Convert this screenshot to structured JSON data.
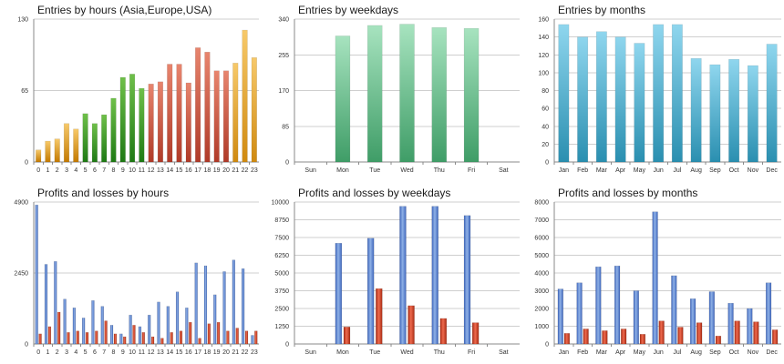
{
  "chart_data": [
    {
      "id": "c1",
      "type": "bar",
      "title": "Entries by hours (Asia,Europe,USA)",
      "ylim": [
        0,
        130
      ],
      "yticks": [
        "0",
        "65",
        "130"
      ],
      "categories": [
        "0",
        "1",
        "2",
        "3",
        "4",
        "5",
        "6",
        "7",
        "8",
        "9",
        "10",
        "11",
        "12",
        "13",
        "14",
        "15",
        "16",
        "17",
        "18",
        "19",
        "20",
        "21",
        "22",
        "23"
      ],
      "series": [
        {
          "name": "Entries",
          "values": [
            11,
            19,
            21,
            35,
            30,
            44,
            35,
            43,
            58,
            77,
            80,
            67,
            71,
            73,
            89,
            89,
            72,
            104,
            100,
            83,
            83,
            90,
            120,
            95
          ]
        }
      ],
      "bar_colors": [
        [
          "#f7c96a",
          "#c47a00"
        ],
        [
          "#f7c96a",
          "#c47a00"
        ],
        [
          "#f7c96a",
          "#c47a00"
        ],
        [
          "#f7c96a",
          "#c47a00"
        ],
        [
          "#f7c96a",
          "#c47a00"
        ],
        [
          "#6fc04a",
          "#1e7a14"
        ],
        [
          "#6fc04a",
          "#1e7a14"
        ],
        [
          "#6fc04a",
          "#1e7a14"
        ],
        [
          "#6fc04a",
          "#1e7a14"
        ],
        [
          "#6fc04a",
          "#1e7a14"
        ],
        [
          "#6fc04a",
          "#1e7a14"
        ],
        [
          "#6fc04a",
          "#1e7a14"
        ],
        [
          "#e8856e",
          "#b03a28"
        ],
        [
          "#e8856e",
          "#b03a28"
        ],
        [
          "#e8856e",
          "#b03a28"
        ],
        [
          "#e8856e",
          "#b03a28"
        ],
        [
          "#e8856e",
          "#b03a28"
        ],
        [
          "#e8856e",
          "#b03a28"
        ],
        [
          "#e8856e",
          "#b03a28"
        ],
        [
          "#e8856e",
          "#b03a28"
        ],
        [
          "#e8856e",
          "#b03a28"
        ],
        [
          "#f7c96a",
          "#d08a10"
        ],
        [
          "#f7c96a",
          "#d08a10"
        ],
        [
          "#f7c96a",
          "#d08a10"
        ]
      ]
    },
    {
      "id": "c2",
      "type": "bar",
      "title": "Entries by weekdays",
      "ylim": [
        0,
        340
      ],
      "yticks": [
        "0",
        "85",
        "170",
        "255",
        "340"
      ],
      "categories": [
        "Sun",
        "Mon",
        "Tue",
        "Wed",
        "Thu",
        "Fri",
        "Sat"
      ],
      "series": [
        {
          "name": "Entries",
          "values": [
            0,
            300,
            325,
            328,
            320,
            318,
            0
          ]
        }
      ],
      "colors": [
        "#a7e3bf",
        "#3f9d67"
      ]
    },
    {
      "id": "c3",
      "type": "bar",
      "title": "Entries by months",
      "ylim": [
        0,
        160
      ],
      "yticks": [
        "0",
        "20",
        "40",
        "60",
        "80",
        "100",
        "120",
        "140",
        "160"
      ],
      "categories": [
        "Jan",
        "Feb",
        "Mar",
        "Apr",
        "May",
        "Jun",
        "Jul",
        "Aug",
        "Sep",
        "Oct",
        "Nov",
        "Dec"
      ],
      "series": [
        {
          "name": "Entries",
          "values": [
            154,
            140,
            146,
            140,
            133,
            154,
            154,
            116,
            109,
            115,
            108,
            132
          ]
        }
      ],
      "colors": [
        "#8fd6ee",
        "#2a8fb0"
      ]
    },
    {
      "id": "c4",
      "type": "bar",
      "title": "Profits and losses by hours",
      "ylim": [
        0,
        4900
      ],
      "yticks": [
        "0",
        "2450",
        "4900"
      ],
      "categories": [
        "0",
        "1",
        "2",
        "3",
        "4",
        "5",
        "6",
        "7",
        "8",
        "9",
        "10",
        "11",
        "12",
        "13",
        "14",
        "15",
        "16",
        "17",
        "18",
        "19",
        "20",
        "21",
        "22",
        "23"
      ],
      "series": [
        {
          "name": "Profits",
          "values": [
            4800,
            2750,
            2850,
            1550,
            1250,
            900,
            1500,
            1300,
            650,
            350,
            1000,
            600,
            1000,
            1450,
            1300,
            1800,
            1250,
            2800,
            2700,
            1700,
            2500,
            2900,
            2600,
            300
          ]
        },
        {
          "name": "Losses",
          "values": [
            350,
            600,
            1100,
            400,
            450,
            400,
            450,
            800,
            350,
            250,
            650,
            400,
            250,
            200,
            400,
            450,
            750,
            200,
            700,
            750,
            450,
            550,
            450,
            450
          ]
        }
      ],
      "colors": [
        [
          "#8fb1e6",
          "#3e66bd"
        ],
        [
          "#ee6a4e",
          "#a82a12"
        ]
      ]
    },
    {
      "id": "c5",
      "type": "bar",
      "title": "Profits and losses by weekdays",
      "ylim": [
        0,
        10000
      ],
      "yticks": [
        "0",
        "1250",
        "2500",
        "3750",
        "5000",
        "6250",
        "7500",
        "8750",
        "10000"
      ],
      "categories": [
        "Sun",
        "Mon",
        "Tue",
        "Wed",
        "Thu",
        "Fri",
        "Sat"
      ],
      "series": [
        {
          "name": "Profits",
          "values": [
            0,
            7100,
            7450,
            9700,
            9700,
            9050,
            0
          ]
        },
        {
          "name": "Losses",
          "values": [
            0,
            1200,
            3900,
            2700,
            1800,
            1500,
            0
          ]
        }
      ],
      "colors": [
        [
          "#8fb1e6",
          "#3e66bd"
        ],
        [
          "#ee6a4e",
          "#a82a12"
        ]
      ]
    },
    {
      "id": "c6",
      "type": "bar",
      "title": "Profits and losses by months",
      "ylim": [
        0,
        8000
      ],
      "yticks": [
        "0",
        "1000",
        "2000",
        "3000",
        "4000",
        "5000",
        "6000",
        "7000",
        "8000"
      ],
      "categories": [
        "Jan",
        "Feb",
        "Mar",
        "Apr",
        "May",
        "Jun",
        "Jul",
        "Aug",
        "Sep",
        "Oct",
        "Nov",
        "Dec"
      ],
      "series": [
        {
          "name": "Profits",
          "values": [
            3100,
            3450,
            4350,
            4400,
            3000,
            7450,
            3850,
            2550,
            2950,
            2300,
            2000,
            3450
          ]
        },
        {
          "name": "Losses",
          "values": [
            600,
            850,
            750,
            850,
            550,
            1300,
            950,
            1200,
            450,
            1300,
            1250,
            800
          ]
        }
      ],
      "colors": [
        [
          "#8fb1e6",
          "#3e66bd"
        ],
        [
          "#ee6a4e",
          "#a82a12"
        ]
      ]
    }
  ]
}
